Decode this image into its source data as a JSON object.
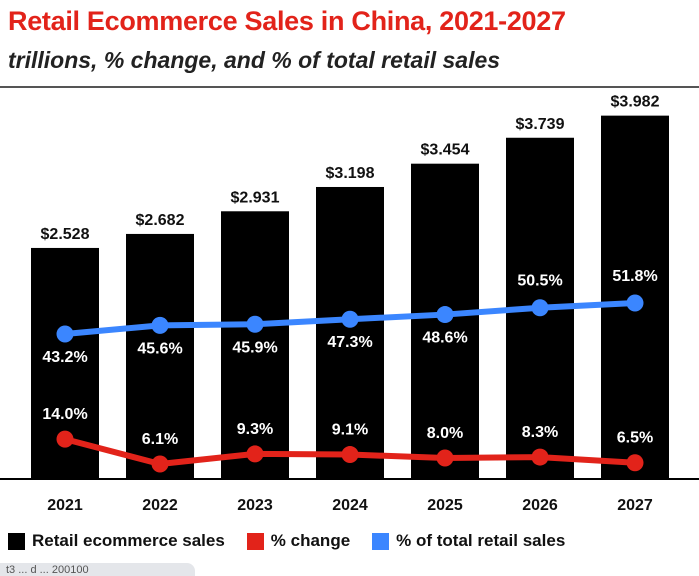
{
  "header": {
    "title": "Retail Ecommerce Sales in China, 2021-2027",
    "subtitle": "trillions, % change, and % of total retail sales"
  },
  "colors": {
    "bar": "#000000",
    "change_line": "#e2231a",
    "share_line": "#3b86ff",
    "title": "#e2231a"
  },
  "chart_data": {
    "type": "bar",
    "title": "Retail Ecommerce Sales in China, 2021-2027",
    "subtitle": "trillions, % change, and % of total retail sales",
    "categories": [
      "2021",
      "2022",
      "2023",
      "2024",
      "2025",
      "2026",
      "2027"
    ],
    "series": [
      {
        "name": "Retail ecommerce sales",
        "type": "bar",
        "values": [
          2.528,
          2.682,
          2.931,
          3.198,
          3.454,
          3.739,
          3.982
        ],
        "labels": [
          "$2.528",
          "$2.682",
          "$2.931",
          "$3.198",
          "$3.454",
          "$3.739",
          "$3.982"
        ]
      },
      {
        "name": "% change",
        "type": "line",
        "values": [
          14.0,
          6.1,
          9.3,
          9.1,
          8.0,
          8.3,
          6.5
        ],
        "labels": [
          "14.0%",
          "6.1%",
          "9.3%",
          "9.1%",
          "8.0%",
          "8.3%",
          "6.5%"
        ]
      },
      {
        "name": "% of total retail sales",
        "type": "line",
        "values": [
          43.2,
          45.6,
          45.9,
          47.3,
          48.6,
          50.5,
          51.8
        ],
        "labels": [
          "43.2%",
          "45.6%",
          "45.9%",
          "47.3%",
          "48.6%",
          "50.5%",
          "51.8%"
        ]
      }
    ],
    "legend": "bottom",
    "grid": false
  },
  "footnote": "t3 ... d ... 200100"
}
